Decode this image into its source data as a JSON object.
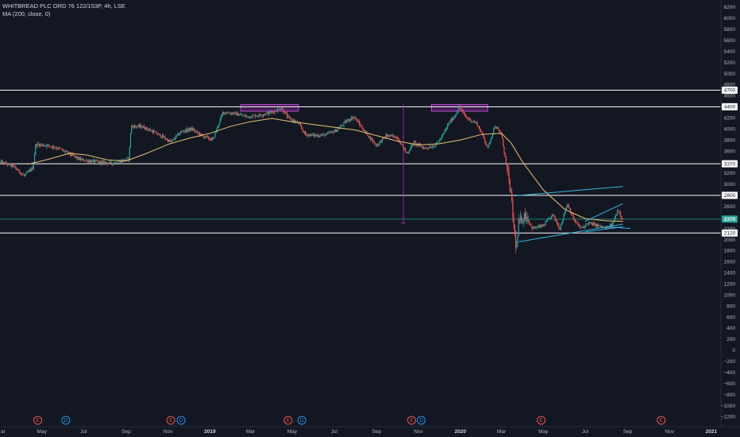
{
  "chart_data": {
    "type": "candlestick",
    "symbol_title": "WHITBREAD PLC ORD 76 122/153P, 4h, LSE",
    "indicator_label": "MA (200, close, 0)",
    "y_axis": {
      "ylim": [
        -1250,
        6300
      ],
      "ticks": [
        6200,
        6000,
        5800,
        5600,
        5400,
        5200,
        5000,
        4800,
        4600,
        4400,
        4200,
        4000,
        3800,
        3600,
        3400,
        3200,
        3000,
        2800,
        2600,
        2400,
        2200,
        2000,
        1800,
        1600,
        1400,
        1200,
        1000,
        800,
        600,
        400,
        200,
        0,
        -200,
        -400,
        -600,
        -800,
        -1000,
        -1200
      ]
    },
    "x_axis": {
      "range": [
        "2018-03-01",
        "2021-01-15"
      ],
      "ticks": [
        {
          "date": "2018-05-01",
          "label": "May",
          "bold": false
        },
        {
          "date": "2018-07-01",
          "label": "Jul",
          "bold": false
        },
        {
          "date": "2018-09-01",
          "label": "Sep",
          "bold": false
        },
        {
          "date": "2018-11-01",
          "label": "Nov",
          "bold": false
        },
        {
          "date": "2019-01-01",
          "label": "2019",
          "bold": true
        },
        {
          "date": "2019-03-01",
          "label": "Mar",
          "bold": false
        },
        {
          "date": "2019-05-01",
          "label": "May",
          "bold": false
        },
        {
          "date": "2019-07-01",
          "label": "Jul",
          "bold": false
        },
        {
          "date": "2019-09-01",
          "label": "Sep",
          "bold": false
        },
        {
          "date": "2019-11-01",
          "label": "Nov",
          "bold": false
        },
        {
          "date": "2020-01-01",
          "label": "2020",
          "bold": true
        },
        {
          "date": "2020-03-01",
          "label": "Mar",
          "bold": false
        },
        {
          "date": "2020-05-01",
          "label": "May",
          "bold": false
        },
        {
          "date": "2020-07-01",
          "label": "Jul",
          "bold": false
        },
        {
          "date": "2020-09-01",
          "label": "Sep",
          "bold": false
        },
        {
          "date": "2020-11-01",
          "label": "Nov",
          "bold": false
        },
        {
          "date": "2021-01-01",
          "label": "2021",
          "bold": true
        }
      ]
    },
    "axis_edge_label": "ar",
    "price_path": [
      [
        "2018-03-01",
        3400
      ],
      [
        "2018-03-20",
        3330
      ],
      [
        "2018-04-05",
        3150
      ],
      [
        "2018-04-18",
        3300
      ],
      [
        "2018-04-22",
        3720
      ],
      [
        "2018-05-10",
        3700
      ],
      [
        "2018-05-25",
        3650
      ],
      [
        "2018-06-10",
        3550
      ],
      [
        "2018-06-25",
        3450
      ],
      [
        "2018-07-10",
        3420
      ],
      [
        "2018-07-25",
        3400
      ],
      [
        "2018-08-10",
        3380
      ],
      [
        "2018-08-25",
        3420
      ],
      [
        "2018-09-05",
        3460
      ],
      [
        "2018-09-08",
        4050
      ],
      [
        "2018-09-25",
        4040
      ],
      [
        "2018-10-10",
        3950
      ],
      [
        "2018-10-25",
        3850
      ],
      [
        "2018-11-05",
        3760
      ],
      [
        "2018-11-20",
        3950
      ],
      [
        "2018-12-05",
        4000
      ],
      [
        "2018-12-20",
        3880
      ],
      [
        "2019-01-05",
        3800
      ],
      [
        "2019-01-20",
        4300
      ],
      [
        "2019-02-05",
        4280
      ],
      [
        "2019-02-25",
        4220
      ],
      [
        "2019-03-15",
        4250
      ],
      [
        "2019-04-01",
        4300
      ],
      [
        "2019-04-15",
        4380
      ],
      [
        "2019-04-25",
        4200
      ],
      [
        "2019-05-10",
        4100
      ],
      [
        "2019-05-20",
        3900
      ],
      [
        "2019-06-05",
        3880
      ],
      [
        "2019-06-20",
        3900
      ],
      [
        "2019-07-05",
        3980
      ],
      [
        "2019-07-20",
        4150
      ],
      [
        "2019-07-30",
        4220
      ],
      [
        "2019-08-15",
        3950
      ],
      [
        "2019-09-01",
        3700
      ],
      [
        "2019-09-15",
        3880
      ],
      [
        "2019-10-01",
        3850
      ],
      [
        "2019-10-15",
        3550
      ],
      [
        "2019-10-25",
        3750
      ],
      [
        "2019-11-10",
        3650
      ],
      [
        "2019-11-25",
        3700
      ],
      [
        "2019-12-05",
        3850
      ],
      [
        "2019-12-15",
        4100
      ],
      [
        "2019-12-25",
        4250
      ],
      [
        "2019-12-30",
        4400
      ],
      [
        "2020-01-10",
        4200
      ],
      [
        "2020-01-25",
        4100
      ],
      [
        "2020-02-05",
        3820
      ],
      [
        "2020-02-10",
        3650
      ],
      [
        "2020-02-20",
        4050
      ],
      [
        "2020-03-01",
        3900
      ],
      [
        "2020-03-10",
        3200
      ],
      [
        "2020-03-15",
        2800
      ],
      [
        "2020-03-20",
        2100
      ],
      [
        "2020-03-23",
        1800
      ],
      [
        "2020-03-26",
        2300
      ],
      [
        "2020-04-05",
        2450
      ],
      [
        "2020-04-15",
        2200
      ],
      [
        "2020-05-01",
        2250
      ],
      [
        "2020-05-15",
        2450
      ],
      [
        "2020-05-25",
        2200
      ],
      [
        "2020-06-05",
        2650
      ],
      [
        "2020-06-15",
        2350
      ],
      [
        "2020-06-25",
        2200
      ],
      [
        "2020-07-05",
        2300
      ],
      [
        "2020-07-20",
        2250
      ],
      [
        "2020-08-01",
        2200
      ],
      [
        "2020-08-10",
        2280
      ],
      [
        "2020-08-18",
        2550
      ],
      [
        "2020-08-25",
        2350
      ]
    ],
    "ma200_path": [
      [
        "2018-04-10",
        3360
      ],
      [
        "2018-05-10",
        3450
      ],
      [
        "2018-06-10",
        3560
      ],
      [
        "2018-07-05",
        3530
      ],
      [
        "2018-08-05",
        3440
      ],
      [
        "2018-09-01",
        3420
      ],
      [
        "2018-10-01",
        3560
      ],
      [
        "2018-11-01",
        3720
      ],
      [
        "2018-12-01",
        3830
      ],
      [
        "2019-01-01",
        3920
      ],
      [
        "2019-02-01",
        4050
      ],
      [
        "2019-03-01",
        4130
      ],
      [
        "2019-04-01",
        4190
      ],
      [
        "2019-05-01",
        4130
      ],
      [
        "2019-06-01",
        4080
      ],
      [
        "2019-07-01",
        4030
      ],
      [
        "2019-08-01",
        3980
      ],
      [
        "2019-09-01",
        3880
      ],
      [
        "2019-10-01",
        3780
      ],
      [
        "2019-11-01",
        3710
      ],
      [
        "2019-12-01",
        3730
      ],
      [
        "2020-01-01",
        3800
      ],
      [
        "2020-02-01",
        3900
      ],
      [
        "2020-03-01",
        3920
      ],
      [
        "2020-03-15",
        3750
      ],
      [
        "2020-04-01",
        3400
      ],
      [
        "2020-05-01",
        2900
      ],
      [
        "2020-06-01",
        2550
      ],
      [
        "2020-07-01",
        2380
      ],
      [
        "2020-08-01",
        2340
      ],
      [
        "2020-08-25",
        2330
      ]
    ],
    "horizontal_levels": [
      {
        "value": 4700,
        "label": "4700"
      },
      {
        "value": 4400,
        "label": "4400"
      },
      {
        "value": 3370,
        "label": "3370"
      },
      {
        "value": 2800,
        "label": "2800"
      },
      {
        "value": 2120,
        "label": "2120"
      }
    ],
    "current_price": {
      "value": 2370,
      "label": "2370"
    },
    "trendlines": [
      {
        "from": [
          "2020-03-20",
          2790
        ],
        "to": [
          "2020-08-25",
          2960
        ]
      },
      {
        "from": [
          "2020-07-01",
          2330
        ],
        "to": [
          "2020-08-25",
          2650
        ]
      },
      {
        "from": [
          "2020-03-26",
          1960
        ],
        "to": [
          "2020-08-25",
          2280
        ]
      },
      {
        "from": [
          "2020-07-01",
          2140
        ],
        "to": [
          "2020-08-25",
          2230
        ]
      },
      {
        "from": [
          "2020-08-05",
          2230
        ],
        "to": [
          "2020-09-05",
          2200
        ]
      }
    ],
    "resistance_boxes": [
      {
        "x0": "2019-02-15",
        "x1": "2019-05-10",
        "y0": 4320,
        "y1": 4440
      },
      {
        "x0": "2019-11-20",
        "x1": "2020-02-10",
        "y0": 4320,
        "y1": 4440
      }
    ],
    "measure_line": {
      "date": "2019-10-10",
      "from": 4450,
      "to": 2300
    },
    "events": [
      {
        "date": "2018-04-25",
        "type": "E"
      },
      {
        "date": "2018-06-05",
        "type": "D"
      },
      {
        "date": "2018-11-05",
        "type": "E"
      },
      {
        "date": "2018-11-20",
        "type": "D"
      },
      {
        "date": "2019-04-25",
        "type": "E"
      },
      {
        "date": "2019-05-15",
        "type": "D"
      },
      {
        "date": "2019-10-22",
        "type": "E"
      },
      {
        "date": "2019-11-05",
        "type": "D"
      },
      {
        "date": "2020-04-28",
        "type": "E"
      },
      {
        "date": "2020-10-20",
        "type": "E"
      }
    ],
    "colors": {
      "background": "#131722",
      "up": "#26a69a",
      "down": "#ef5350",
      "ma": "#e8c571",
      "level_line": "#ffffff",
      "current_price": "#26a69a",
      "current_line": "#1e8c85",
      "trendline": "#33b7e0",
      "box_fill": "#9c27b0",
      "box_stroke": "#c24ad8",
      "measure": "#9c27b0",
      "event_E": "#ef5350",
      "event_D": "#2196f3"
    }
  }
}
